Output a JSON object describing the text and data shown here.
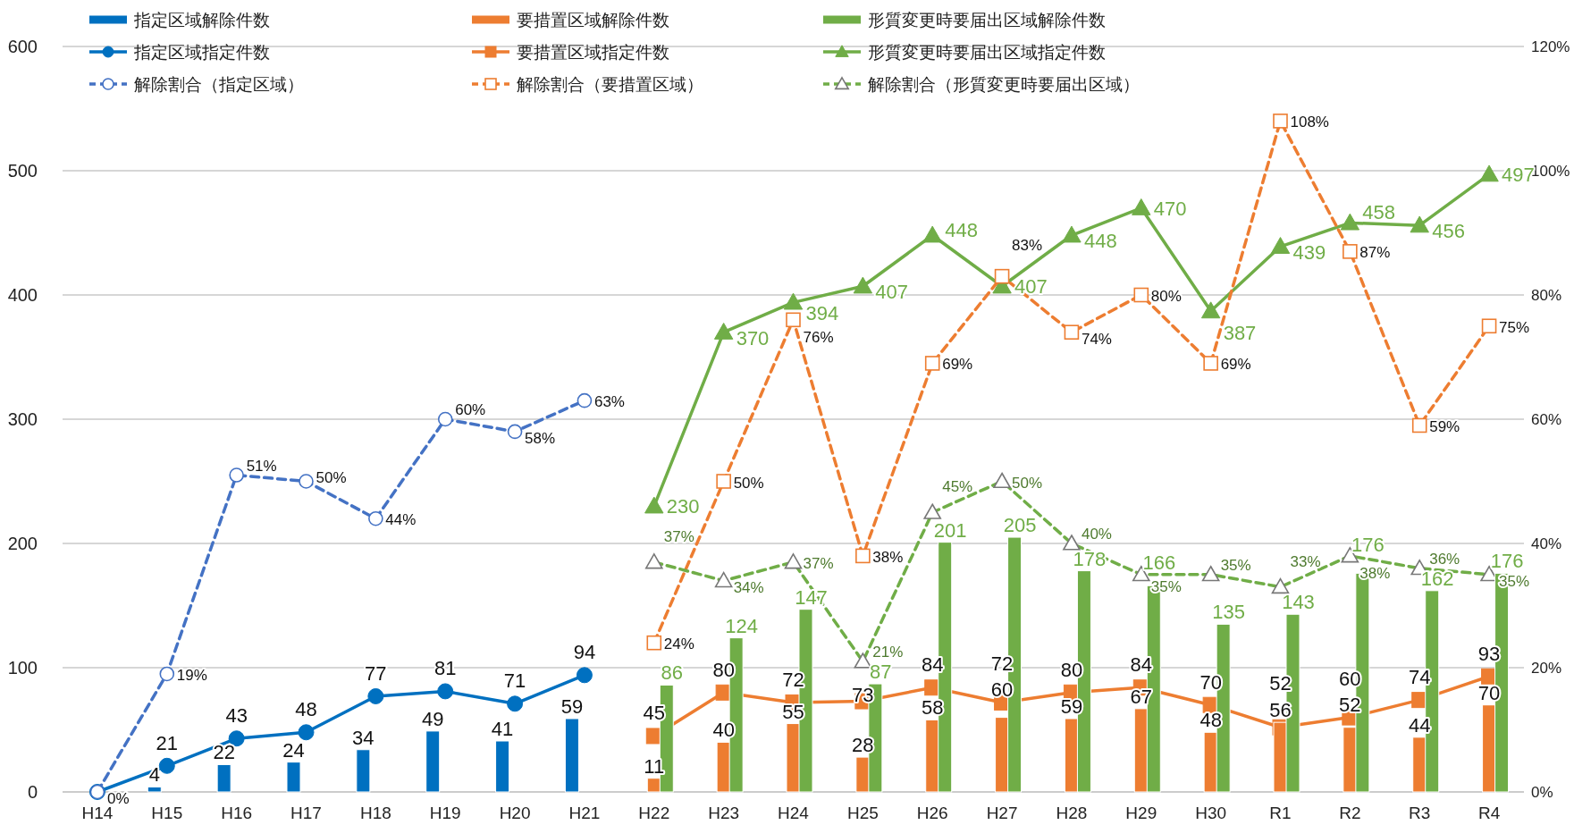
{
  "chart_data": {
    "type": "bar",
    "categories": [
      "H14",
      "H15",
      "H16",
      "H17",
      "H18",
      "H19",
      "H20",
      "H21",
      "H22",
      "H23",
      "H24",
      "H25",
      "H26",
      "H27",
      "H28",
      "H29",
      "H30",
      "R1",
      "R2",
      "R3",
      "R4"
    ],
    "ylim": [
      0,
      600
    ],
    "yticks": [
      0,
      100,
      200,
      300,
      400,
      500,
      600
    ],
    "y2lim": [
      0,
      120
    ],
    "y2ticks": [
      {
        "value": 0,
        "label": "0%"
      },
      {
        "value": 20,
        "label": "20%"
      },
      {
        "value": 40,
        "label": "40%"
      },
      {
        "value": 60,
        "label": "60%"
      },
      {
        "value": 80,
        "label": "80%"
      },
      {
        "value": 100,
        "label": "100%"
      },
      {
        "value": 120,
        "label": "120%"
      }
    ],
    "grid": "y",
    "legend": "top",
    "series": [
      {
        "name": "指定区域解除件数",
        "color": "#0070c0",
        "values": [
          null,
          4,
          22,
          24,
          34,
          49,
          41,
          59,
          null,
          null,
          null,
          null,
          null,
          null,
          null,
          null,
          null,
          null,
          null,
          null,
          null
        ],
        "value_labels": [
          null,
          "4",
          "22",
          "24",
          "34",
          "49",
          "41",
          "59",
          null,
          null,
          null,
          null,
          null,
          null,
          null,
          null,
          null,
          null,
          null,
          null,
          null
        ]
      },
      {
        "name": "要措置区域解除件数",
        "color": "#ed7d31",
        "values": [
          null,
          null,
          null,
          null,
          null,
          null,
          null,
          null,
          11,
          40,
          55,
          28,
          58,
          60,
          59,
          67,
          48,
          56,
          52,
          44,
          70
        ],
        "value_labels": [
          null,
          null,
          null,
          null,
          null,
          null,
          null,
          null,
          "11",
          "40",
          "55",
          "28",
          "58",
          "60",
          "59",
          "67",
          "48",
          "56",
          "52",
          "44",
          "70"
        ]
      },
      {
        "name": "形質変更時要届出区域解除件数",
        "color": "#70ad47",
        "values": [
          null,
          null,
          null,
          null,
          null,
          null,
          null,
          null,
          86,
          124,
          147,
          87,
          201,
          205,
          178,
          166,
          135,
          143,
          176,
          162,
          176
        ],
        "value_labels": [
          null,
          null,
          null,
          null,
          null,
          null,
          null,
          null,
          "86",
          "124",
          "147",
          "87",
          "201",
          "205",
          "178",
          "166",
          "135",
          "143",
          "176",
          "162",
          "176"
        ]
      },
      {
        "name": "指定区域指定件数",
        "type": "line",
        "color": "#0070c0",
        "marker": "circle",
        "line_style": "solid",
        "values": [
          0,
          21,
          43,
          48,
          77,
          81,
          71,
          94,
          null,
          null,
          null,
          null,
          null,
          null,
          null,
          null,
          null,
          null,
          null,
          null,
          null
        ],
        "value_labels": [
          null,
          "21",
          "43",
          "48",
          "77",
          "81",
          "71",
          "94",
          null,
          null,
          null,
          null,
          null,
          null,
          null,
          null,
          null,
          null,
          null,
          null,
          null
        ]
      },
      {
        "name": "要措置区域指定件数",
        "type": "line",
        "color": "#ed7d31",
        "marker": "square",
        "line_style": "solid",
        "values": [
          null,
          null,
          null,
          null,
          null,
          null,
          null,
          null,
          45,
          80,
          72,
          73,
          84,
          72,
          80,
          84,
          70,
          52,
          60,
          74,
          93
        ],
        "value_labels": [
          null,
          null,
          null,
          null,
          null,
          null,
          null,
          null,
          "45",
          "80",
          "72",
          "73",
          "84",
          "72",
          "80",
          "84",
          "70",
          "52",
          "60",
          "74",
          "93"
        ]
      },
      {
        "name": "形質変更時要届出区域指定件数",
        "type": "line",
        "color": "#70ad47",
        "marker": "triangle",
        "line_style": "solid",
        "values": [
          null,
          null,
          null,
          null,
          null,
          null,
          null,
          null,
          230,
          370,
          394,
          407,
          448,
          407,
          448,
          470,
          387,
          439,
          458,
          456,
          497
        ],
        "value_labels": [
          null,
          null,
          null,
          null,
          null,
          null,
          null,
          null,
          "230",
          "370",
          "394",
          "407",
          "448",
          "407",
          "448",
          "470",
          "387",
          "439",
          "458",
          "456",
          "497"
        ]
      },
      {
        "name": "解除割合（指定区域）",
        "type": "line",
        "axis": "y2",
        "color": "#4472c4",
        "marker": "circle",
        "line_style": "dashed",
        "values": [
          0,
          19,
          51,
          50,
          44,
          60,
          58,
          63,
          null,
          null,
          null,
          null,
          null,
          null,
          null,
          null,
          null,
          null,
          null,
          null,
          null
        ],
        "value_labels": [
          "0%",
          "19%",
          "51%",
          "50%",
          "44%",
          "60%",
          "58%",
          "63%",
          null,
          null,
          null,
          null,
          null,
          null,
          null,
          null,
          null,
          null,
          null,
          null,
          null
        ]
      },
      {
        "name": "解除割合（要措置区域）",
        "type": "line",
        "axis": "y2",
        "color": "#ed7d31",
        "marker": "square",
        "line_style": "dashed",
        "values": [
          null,
          null,
          null,
          null,
          null,
          null,
          null,
          null,
          24,
          50,
          76,
          38,
          69,
          83,
          74,
          80,
          69,
          108,
          87,
          59,
          75
        ],
        "value_labels": [
          null,
          null,
          null,
          null,
          null,
          null,
          null,
          null,
          "24%",
          "50%",
          "76%",
          "38%",
          "69%",
          "83%",
          "74%",
          "80%",
          "69%",
          "108%",
          "87%",
          "59%",
          "75%"
        ]
      },
      {
        "name": "解除割合（形質変更時要届出区域）",
        "type": "line",
        "axis": "y2",
        "color": "#70ad47",
        "marker": "triangle",
        "line_style": "dashed",
        "values": [
          null,
          null,
          null,
          null,
          null,
          null,
          null,
          null,
          37,
          34,
          37,
          21,
          45,
          50,
          40,
          35,
          35,
          33,
          38,
          36,
          35
        ],
        "value_labels": [
          null,
          null,
          null,
          null,
          null,
          null,
          null,
          null,
          "37%",
          "34%",
          "37%",
          "21%",
          "45%",
          "50%",
          "40%",
          "35%",
          "35%",
          "33%",
          "38%",
          "36%",
          "35%"
        ]
      }
    ]
  }
}
